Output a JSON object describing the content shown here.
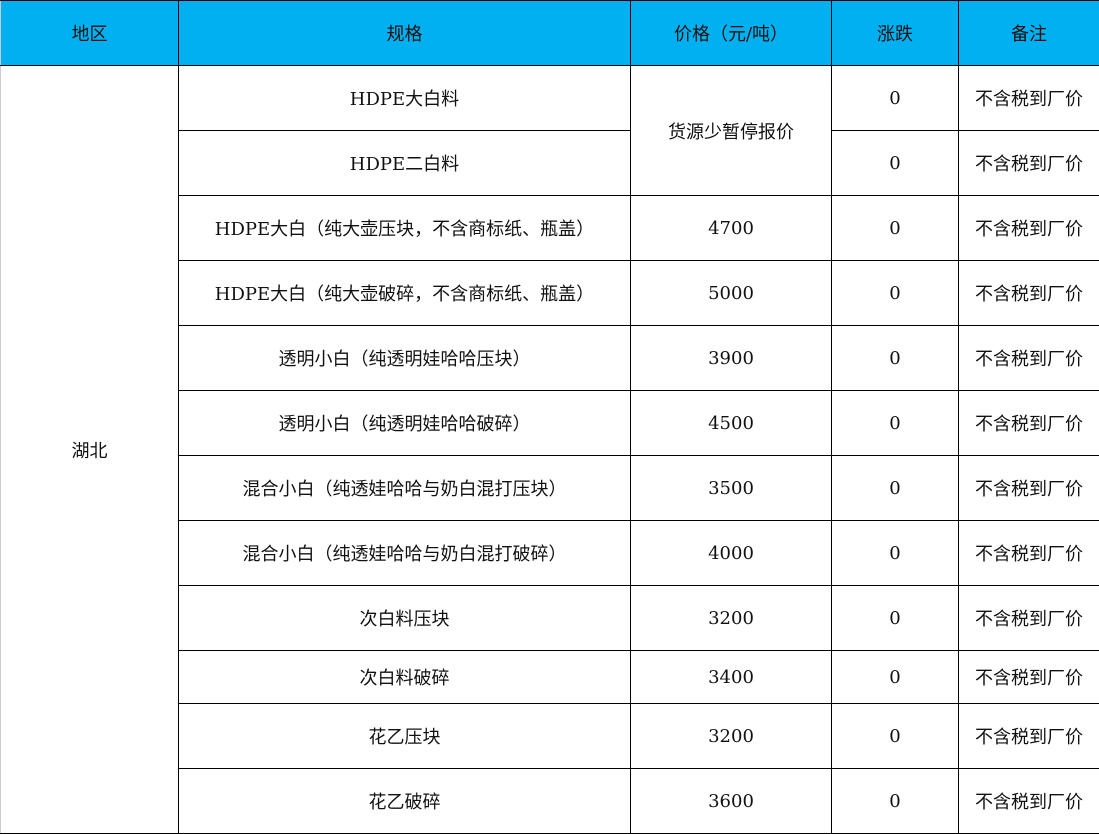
{
  "header_color": "#00B0F0",
  "headers": [
    "地区",
    "规格",
    "价格（元/吨）",
    "涨跌",
    "备注"
  ],
  "region": "湖北",
  "merged_price": "货源少暂停报价",
  "rows": [
    {
      "spec": "HDPE大白料",
      "price": null,
      "change": "0",
      "note": "不含税到厂价"
    },
    {
      "spec": "HDPE二白料",
      "price": null,
      "change": "0",
      "note": "不含税到厂价"
    },
    {
      "spec": "HDPE大白（纯大壶压块，不含商标纸、瓶盖）",
      "price": "4700",
      "change": "0",
      "note": "不含税到厂价"
    },
    {
      "spec": "HDPE大白（纯大壶破碎，不含商标纸、瓶盖）",
      "price": "5000",
      "change": "0",
      "note": "不含税到厂价"
    },
    {
      "spec": "透明小白（纯透明娃哈哈压块）",
      "price": "3900",
      "change": "0",
      "note": "不含税到厂价"
    },
    {
      "spec": "透明小白（纯透明娃哈哈破碎）",
      "price": "4500",
      "change": "0",
      "note": "不含税到厂价"
    },
    {
      "spec": "混合小白（纯透娃哈哈与奶白混打压块）",
      "price": "3500",
      "change": "0",
      "note": "不含税到厂价"
    },
    {
      "spec": "混合小白（纯透娃哈哈与奶白混打破碎）",
      "price": "4000",
      "change": "0",
      "note": "不含税到厂价"
    },
    {
      "spec": "次白料压块",
      "price": "3200",
      "change": "0",
      "note": "不含税到厂价"
    },
    {
      "spec": "次白料破碎",
      "price": "3400",
      "change": "0",
      "note": "不含税到厂价"
    },
    {
      "spec": "花乙压块",
      "price": "3200",
      "change": "0",
      "note": "不含税到厂价"
    },
    {
      "spec": "花乙破碎",
      "price": "3600",
      "change": "0",
      "note": "不含税到厂价"
    }
  ]
}
